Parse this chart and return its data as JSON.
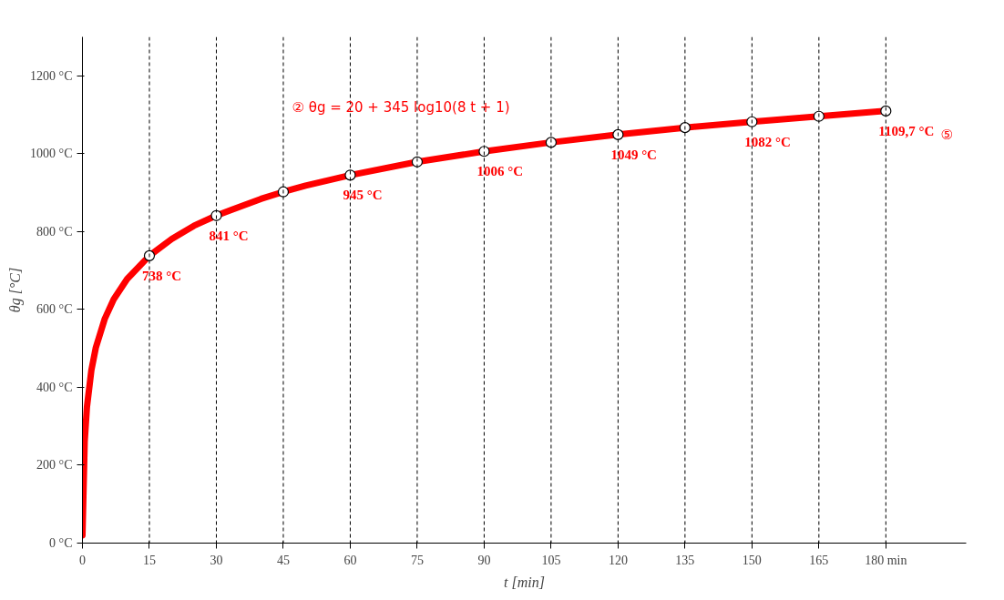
{
  "chart_data": {
    "type": "line",
    "xlabel": "t [min]",
    "ylabel": "θg [°C]",
    "annotations": [
      "② θg = 20 + 345 log10(8 t + 1)",
      "⑤"
    ],
    "xlim": [
      0,
      198
    ],
    "ylim": [
      0,
      1300
    ],
    "xticks": [
      0,
      15,
      30,
      45,
      60,
      75,
      90,
      105,
      120,
      135,
      150,
      165,
      {
        "value": 180,
        "label": "180 min"
      }
    ],
    "yticks": [
      {
        "value": 0,
        "label": "0 °C"
      },
      {
        "value": 200,
        "label": "200 °C"
      },
      {
        "value": 400,
        "label": "400 °C"
      },
      {
        "value": 600,
        "label": "600 °C"
      },
      {
        "value": 800,
        "label": "800 °C"
      },
      {
        "value": 1000,
        "label": "1000 °C"
      },
      {
        "value": 1200,
        "label": "1200 °C"
      }
    ],
    "grid": false,
    "series": [
      {
        "color": "#ff0000",
        "marker": "none",
        "line_style": "solid",
        "x": [
          0,
          0.5,
          1,
          2,
          3,
          5,
          7,
          10,
          15,
          20,
          25,
          30,
          40,
          45,
          50,
          60,
          75,
          90,
          105,
          120,
          135,
          150,
          165,
          180
        ],
        "values": [
          20,
          261,
          349,
          444,
          502,
          576,
          626,
          678,
          738,
          781,
          815,
          841,
          884,
          902,
          918,
          945,
          979,
          1006,
          1029,
          1049,
          1067,
          1082,
          1096,
          1110
        ]
      },
      {
        "type": "scatter",
        "color": "#ffffff",
        "marker": "circle",
        "x": [
          15,
          30,
          45,
          60,
          75,
          90,
          105,
          120,
          135,
          150,
          165,
          180
        ],
        "values": [
          738,
          841,
          902,
          945,
          979,
          1006,
          1029,
          1049,
          1067,
          1082,
          1096,
          1109.7
        ],
        "value_labels": [
          "738 °C",
          "841 °C",
          null,
          "945 °C",
          null,
          "1006 °C",
          null,
          "1049 °C",
          null,
          "1082 °C",
          null,
          "1109,7 °C"
        ]
      }
    ],
    "ref_lines": [
      {
        "axis": "x",
        "value": 15,
        "color": "#000000",
        "line_style": "dashed"
      },
      {
        "axis": "x",
        "value": 30,
        "color": "#000000",
        "line_style": "dashed"
      },
      {
        "axis": "x",
        "value": 45,
        "color": "#000000",
        "line_style": "dashed"
      },
      {
        "axis": "x",
        "value": 60,
        "color": "#000000",
        "line_style": "dashed"
      },
      {
        "axis": "x",
        "value": 75,
        "color": "#000000",
        "line_style": "dashed"
      },
      {
        "axis": "x",
        "value": 90,
        "color": "#000000",
        "line_style": "dashed"
      },
      {
        "axis": "x",
        "value": 105,
        "color": "#000000",
        "line_style": "dashed"
      },
      {
        "axis": "x",
        "value": 120,
        "color": "#000000",
        "line_style": "dashed"
      },
      {
        "axis": "x",
        "value": 135,
        "color": "#000000",
        "line_style": "dashed"
      },
      {
        "axis": "x",
        "value": 150,
        "color": "#000000",
        "line_style": "dashed"
      },
      {
        "axis": "x",
        "value": 165,
        "color": "#000000",
        "line_style": "dashed"
      },
      {
        "axis": "x",
        "value": 180,
        "color": "#000000",
        "line_style": "dashed"
      }
    ]
  }
}
